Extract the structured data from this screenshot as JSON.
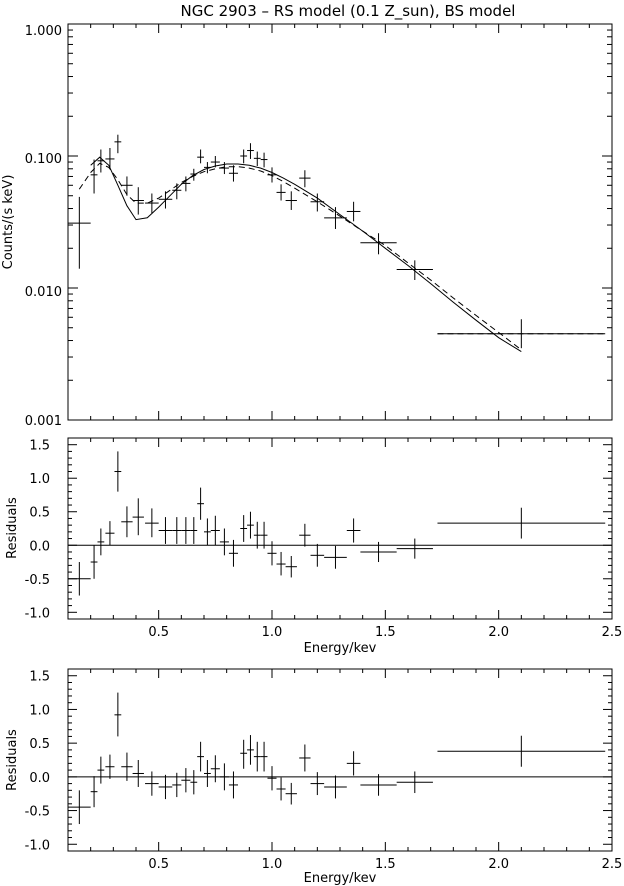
{
  "chart_data": [
    {
      "type": "scatter",
      "title": "NGC 2903 – RS model (0.1 Z_sun), BS model",
      "xlabel": "",
      "ylabel": "Counts/(s keV)",
      "xlim": [
        0.1,
        2.5
      ],
      "ylim": [
        0.001,
        1.0
      ],
      "yscale": "log",
      "ytick_labels": [
        "0.001",
        "0.010",
        "0.100",
        "1.000"
      ],
      "grid": false,
      "points": [
        {
          "x": 0.15,
          "xerr": 0.05,
          "y": 0.031,
          "ylo": 0.014,
          "yhi": 0.049
        },
        {
          "x": 0.215,
          "xerr": 0.015,
          "y": 0.072,
          "ylo": 0.052,
          "yhi": 0.094
        },
        {
          "x": 0.245,
          "xerr": 0.015,
          "y": 0.092,
          "ylo": 0.075,
          "yhi": 0.112
        },
        {
          "x": 0.285,
          "xerr": 0.02,
          "y": 0.095,
          "ylo": 0.08,
          "yhi": 0.115
        },
        {
          "x": 0.32,
          "xerr": 0.015,
          "y": 0.128,
          "ylo": 0.105,
          "yhi": 0.145
        },
        {
          "x": 0.36,
          "xerr": 0.025,
          "y": 0.06,
          "ylo": 0.05,
          "yhi": 0.07
        },
        {
          "x": 0.41,
          "xerr": 0.025,
          "y": 0.046,
          "ylo": 0.036,
          "yhi": 0.058
        },
        {
          "x": 0.47,
          "xerr": 0.03,
          "y": 0.044,
          "ylo": 0.037,
          "yhi": 0.052
        },
        {
          "x": 0.53,
          "xerr": 0.03,
          "y": 0.047,
          "ylo": 0.04,
          "yhi": 0.054
        },
        {
          "x": 0.58,
          "xerr": 0.02,
          "y": 0.055,
          "ylo": 0.047,
          "yhi": 0.062
        },
        {
          "x": 0.62,
          "xerr": 0.02,
          "y": 0.062,
          "ylo": 0.054,
          "yhi": 0.07
        },
        {
          "x": 0.655,
          "xerr": 0.015,
          "y": 0.073,
          "ylo": 0.065,
          "yhi": 0.08
        },
        {
          "x": 0.685,
          "xerr": 0.015,
          "y": 0.098,
          "ylo": 0.088,
          "yhi": 0.112
        },
        {
          "x": 0.715,
          "xerr": 0.015,
          "y": 0.082,
          "ylo": 0.074,
          "yhi": 0.09
        },
        {
          "x": 0.75,
          "xerr": 0.02,
          "y": 0.09,
          "ylo": 0.082,
          "yhi": 0.1
        },
        {
          "x": 0.79,
          "xerr": 0.02,
          "y": 0.081,
          "ylo": 0.073,
          "yhi": 0.09
        },
        {
          "x": 0.83,
          "xerr": 0.02,
          "y": 0.074,
          "ylo": 0.064,
          "yhi": 0.085
        },
        {
          "x": 0.875,
          "xerr": 0.015,
          "y": 0.1,
          "ylo": 0.088,
          "yhi": 0.112
        },
        {
          "x": 0.905,
          "xerr": 0.015,
          "y": 0.11,
          "ylo": 0.095,
          "yhi": 0.125
        },
        {
          "x": 0.935,
          "xerr": 0.015,
          "y": 0.096,
          "ylo": 0.084,
          "yhi": 0.108
        },
        {
          "x": 0.965,
          "xerr": 0.015,
          "y": 0.094,
          "ylo": 0.082,
          "yhi": 0.106
        },
        {
          "x": 1.0,
          "xerr": 0.02,
          "y": 0.072,
          "ylo": 0.063,
          "yhi": 0.082
        },
        {
          "x": 1.04,
          "xerr": 0.02,
          "y": 0.053,
          "ylo": 0.046,
          "yhi": 0.061
        },
        {
          "x": 1.085,
          "xerr": 0.025,
          "y": 0.046,
          "ylo": 0.039,
          "yhi": 0.054
        },
        {
          "x": 1.145,
          "xerr": 0.025,
          "y": 0.068,
          "ylo": 0.058,
          "yhi": 0.078
        },
        {
          "x": 1.2,
          "xerr": 0.03,
          "y": 0.045,
          "ylo": 0.038,
          "yhi": 0.052
        },
        {
          "x": 1.28,
          "xerr": 0.05,
          "y": 0.034,
          "ylo": 0.028,
          "yhi": 0.041
        },
        {
          "x": 1.36,
          "xerr": 0.03,
          "y": 0.038,
          "ylo": 0.032,
          "yhi": 0.045
        },
        {
          "x": 1.47,
          "xerr": 0.08,
          "y": 0.022,
          "ylo": 0.018,
          "yhi": 0.026
        },
        {
          "x": 1.63,
          "xerr": 0.08,
          "y": 0.0138,
          "ylo": 0.0115,
          "yhi": 0.0162
        },
        {
          "x": 2.1,
          "xerr": 0.37,
          "y": 0.0045,
          "ylo": 0.0035,
          "yhi": 0.0058
        }
      ],
      "models": [
        {
          "style": "solid",
          "x": [
            0.2,
            0.24,
            0.28,
            0.32,
            0.36,
            0.4,
            0.45,
            0.5,
            0.55,
            0.6,
            0.65,
            0.7,
            0.75,
            0.8,
            0.85,
            0.9,
            0.95,
            1.0,
            1.05,
            1.1,
            1.2,
            1.3,
            1.4,
            1.5,
            1.6,
            1.7,
            1.8,
            1.9,
            2.0,
            2.1
          ],
          "y": [
            0.085,
            0.098,
            0.085,
            0.06,
            0.042,
            0.033,
            0.034,
            0.041,
            0.05,
            0.061,
            0.071,
            0.079,
            0.084,
            0.087,
            0.087,
            0.085,
            0.081,
            0.075,
            0.068,
            0.061,
            0.048,
            0.036,
            0.027,
            0.02,
            0.0148,
            0.0108,
            0.0078,
            0.0057,
            0.0042,
            0.0033
          ]
        },
        {
          "style": "dashed",
          "x": [
            0.15,
            0.2,
            0.24,
            0.28,
            0.32,
            0.36,
            0.4,
            0.45,
            0.5,
            0.55,
            0.6,
            0.65,
            0.7,
            0.75,
            0.8,
            0.85,
            0.9,
            0.95,
            1.0,
            1.05,
            1.1,
            1.2,
            1.3,
            1.4,
            1.5,
            1.6,
            1.7,
            1.8,
            1.9,
            2.0,
            2.1
          ],
          "y": [
            0.056,
            0.075,
            0.088,
            0.082,
            0.066,
            0.051,
            0.044,
            0.044,
            0.048,
            0.055,
            0.063,
            0.07,
            0.076,
            0.08,
            0.083,
            0.083,
            0.081,
            0.077,
            0.071,
            0.064,
            0.057,
            0.045,
            0.035,
            0.027,
            0.021,
            0.0155,
            0.0115,
            0.0084,
            0.0062,
            0.0046,
            0.0034
          ]
        }
      ],
      "model_extension": {
        "style": "dashed",
        "x": [
          1.73,
          2.47
        ],
        "y": [
          0.0045,
          0.0045
        ]
      }
    },
    {
      "type": "scatter",
      "title": "",
      "xlabel": "Energy/kev",
      "ylabel": "Residuals",
      "xlim": [
        0.1,
        2.5
      ],
      "ylim": [
        -1.1,
        1.6
      ],
      "xticks": [
        "0.5",
        "1.0",
        "1.5",
        "2.0",
        "2.5"
      ],
      "yticks": [
        "-1.0",
        "-0.5",
        "0.0",
        "0.5",
        "1.0",
        "1.5"
      ],
      "zero_line": true,
      "points": [
        {
          "x": 0.15,
          "xerr": 0.05,
          "y": -0.5,
          "ylo": -0.75,
          "yhi": -0.25
        },
        {
          "x": 0.215,
          "xerr": 0.015,
          "y": -0.25,
          "ylo": -0.5,
          "yhi": 0.0
        },
        {
          "x": 0.245,
          "xerr": 0.015,
          "y": 0.05,
          "ylo": -0.15,
          "yhi": 0.25
        },
        {
          "x": 0.285,
          "xerr": 0.02,
          "y": 0.18,
          "ylo": 0.0,
          "yhi": 0.36
        },
        {
          "x": 0.32,
          "xerr": 0.015,
          "y": 1.1,
          "ylo": 0.8,
          "yhi": 1.4
        },
        {
          "x": 0.36,
          "xerr": 0.025,
          "y": 0.35,
          "ylo": 0.12,
          "yhi": 0.58
        },
        {
          "x": 0.41,
          "xerr": 0.025,
          "y": 0.42,
          "ylo": 0.15,
          "yhi": 0.7
        },
        {
          "x": 0.47,
          "xerr": 0.03,
          "y": 0.33,
          "ylo": 0.12,
          "yhi": 0.55
        },
        {
          "x": 0.53,
          "xerr": 0.03,
          "y": 0.22,
          "ylo": 0.02,
          "yhi": 0.42
        },
        {
          "x": 0.58,
          "xerr": 0.02,
          "y": 0.22,
          "ylo": 0.02,
          "yhi": 0.42
        },
        {
          "x": 0.62,
          "xerr": 0.02,
          "y": 0.22,
          "ylo": 0.02,
          "yhi": 0.42
        },
        {
          "x": 0.655,
          "xerr": 0.015,
          "y": 0.22,
          "ylo": 0.02,
          "yhi": 0.42
        },
        {
          "x": 0.685,
          "xerr": 0.015,
          "y": 0.62,
          "ylo": 0.38,
          "yhi": 0.86
        },
        {
          "x": 0.715,
          "xerr": 0.015,
          "y": 0.2,
          "ylo": 0.0,
          "yhi": 0.4
        },
        {
          "x": 0.75,
          "xerr": 0.02,
          "y": 0.22,
          "ylo": 0.0,
          "yhi": 0.44
        },
        {
          "x": 0.79,
          "xerr": 0.02,
          "y": 0.05,
          "ylo": -0.15,
          "yhi": 0.25
        },
        {
          "x": 0.83,
          "xerr": 0.02,
          "y": -0.12,
          "ylo": -0.32,
          "yhi": 0.08
        },
        {
          "x": 0.875,
          "xerr": 0.015,
          "y": 0.25,
          "ylo": 0.05,
          "yhi": 0.45
        },
        {
          "x": 0.905,
          "xerr": 0.015,
          "y": 0.3,
          "ylo": 0.1,
          "yhi": 0.5
        },
        {
          "x": 0.935,
          "xerr": 0.015,
          "y": 0.15,
          "ylo": -0.05,
          "yhi": 0.35
        },
        {
          "x": 0.965,
          "xerr": 0.015,
          "y": 0.15,
          "ylo": -0.05,
          "yhi": 0.35
        },
        {
          "x": 1.0,
          "xerr": 0.02,
          "y": -0.12,
          "ylo": -0.3,
          "yhi": 0.06
        },
        {
          "x": 1.04,
          "xerr": 0.02,
          "y": -0.28,
          "ylo": -0.45,
          "yhi": -0.1
        },
        {
          "x": 1.085,
          "xerr": 0.025,
          "y": -0.32,
          "ylo": -0.48,
          "yhi": -0.16
        },
        {
          "x": 1.145,
          "xerr": 0.025,
          "y": 0.15,
          "ylo": -0.02,
          "yhi": 0.32
        },
        {
          "x": 1.2,
          "xerr": 0.03,
          "y": -0.15,
          "ylo": -0.32,
          "yhi": 0.02
        },
        {
          "x": 1.28,
          "xerr": 0.05,
          "y": -0.18,
          "ylo": -0.35,
          "yhi": -0.01
        },
        {
          "x": 1.36,
          "xerr": 0.03,
          "y": 0.22,
          "ylo": 0.04,
          "yhi": 0.4
        },
        {
          "x": 1.47,
          "xerr": 0.08,
          "y": -0.1,
          "ylo": -0.25,
          "yhi": 0.05
        },
        {
          "x": 1.63,
          "xerr": 0.08,
          "y": -0.05,
          "ylo": -0.2,
          "yhi": 0.1
        },
        {
          "x": 2.1,
          "xerr": 0.37,
          "y": 0.33,
          "ylo": 0.1,
          "yhi": 0.56
        }
      ]
    },
    {
      "type": "scatter",
      "title": "",
      "xlabel": "Energy/kev",
      "ylabel": "Residuals",
      "xlim": [
        0.1,
        2.5
      ],
      "ylim": [
        -1.1,
        1.6
      ],
      "xticks": [
        "0.5",
        "1.0",
        "1.5",
        "2.0",
        "2.5"
      ],
      "yticks": [
        "-1.0",
        "-0.5",
        "0.0",
        "0.5",
        "1.0",
        "1.5"
      ],
      "zero_line": true,
      "points": [
        {
          "x": 0.15,
          "xerr": 0.05,
          "y": -0.45,
          "ylo": -0.7,
          "yhi": -0.2
        },
        {
          "x": 0.215,
          "xerr": 0.015,
          "y": -0.22,
          "ylo": -0.45,
          "yhi": 0.01
        },
        {
          "x": 0.245,
          "xerr": 0.015,
          "y": 0.1,
          "ylo": -0.1,
          "yhi": 0.3
        },
        {
          "x": 0.285,
          "xerr": 0.02,
          "y": 0.15,
          "ylo": -0.03,
          "yhi": 0.33
        },
        {
          "x": 0.32,
          "xerr": 0.015,
          "y": 0.92,
          "ylo": 0.6,
          "yhi": 1.25
        },
        {
          "x": 0.36,
          "xerr": 0.025,
          "y": 0.15,
          "ylo": -0.06,
          "yhi": 0.36
        },
        {
          "x": 0.41,
          "xerr": 0.025,
          "y": 0.05,
          "ylo": -0.15,
          "yhi": 0.25
        },
        {
          "x": 0.47,
          "xerr": 0.03,
          "y": -0.1,
          "ylo": -0.28,
          "yhi": 0.08
        },
        {
          "x": 0.53,
          "xerr": 0.03,
          "y": -0.15,
          "ylo": -0.33,
          "yhi": 0.03
        },
        {
          "x": 0.58,
          "xerr": 0.02,
          "y": -0.12,
          "ylo": -0.3,
          "yhi": 0.06
        },
        {
          "x": 0.62,
          "xerr": 0.02,
          "y": -0.05,
          "ylo": -0.23,
          "yhi": 0.13
        },
        {
          "x": 0.655,
          "xerr": 0.015,
          "y": -0.08,
          "ylo": -0.26,
          "yhi": 0.1
        },
        {
          "x": 0.685,
          "xerr": 0.015,
          "y": 0.3,
          "ylo": 0.08,
          "yhi": 0.52
        },
        {
          "x": 0.715,
          "xerr": 0.015,
          "y": 0.05,
          "ylo": -0.15,
          "yhi": 0.25
        },
        {
          "x": 0.75,
          "xerr": 0.02,
          "y": 0.12,
          "ylo": -0.08,
          "yhi": 0.32
        },
        {
          "x": 0.79,
          "xerr": 0.02,
          "y": 0.0,
          "ylo": -0.2,
          "yhi": 0.2
        },
        {
          "x": 0.83,
          "xerr": 0.02,
          "y": -0.12,
          "ylo": -0.32,
          "yhi": 0.08
        },
        {
          "x": 0.875,
          "xerr": 0.015,
          "y": 0.35,
          "ylo": 0.12,
          "yhi": 0.55
        },
        {
          "x": 0.905,
          "xerr": 0.015,
          "y": 0.4,
          "ylo": 0.18,
          "yhi": 0.62
        },
        {
          "x": 0.935,
          "xerr": 0.015,
          "y": 0.3,
          "ylo": 0.08,
          "yhi": 0.52
        },
        {
          "x": 0.965,
          "xerr": 0.015,
          "y": 0.3,
          "ylo": 0.08,
          "yhi": 0.52
        },
        {
          "x": 1.0,
          "xerr": 0.02,
          "y": -0.02,
          "ylo": -0.2,
          "yhi": 0.16
        },
        {
          "x": 1.04,
          "xerr": 0.02,
          "y": -0.18,
          "ylo": -0.35,
          "yhi": -0.01
        },
        {
          "x": 1.085,
          "xerr": 0.025,
          "y": -0.25,
          "ylo": -0.41,
          "yhi": -0.09
        },
        {
          "x": 1.145,
          "xerr": 0.025,
          "y": 0.28,
          "ylo": 0.08,
          "yhi": 0.48
        },
        {
          "x": 1.2,
          "xerr": 0.03,
          "y": -0.1,
          "ylo": -0.27,
          "yhi": 0.07
        },
        {
          "x": 1.28,
          "xerr": 0.05,
          "y": -0.15,
          "ylo": -0.32,
          "yhi": 0.02
        },
        {
          "x": 1.36,
          "xerr": 0.03,
          "y": 0.2,
          "ylo": 0.02,
          "yhi": 0.38
        },
        {
          "x": 1.47,
          "xerr": 0.08,
          "y": -0.12,
          "ylo": -0.28,
          "yhi": 0.04
        },
        {
          "x": 1.63,
          "xerr": 0.08,
          "y": -0.08,
          "ylo": -0.24,
          "yhi": 0.08
        },
        {
          "x": 2.1,
          "xerr": 0.37,
          "y": 0.38,
          "ylo": 0.15,
          "yhi": 0.61
        }
      ]
    }
  ]
}
